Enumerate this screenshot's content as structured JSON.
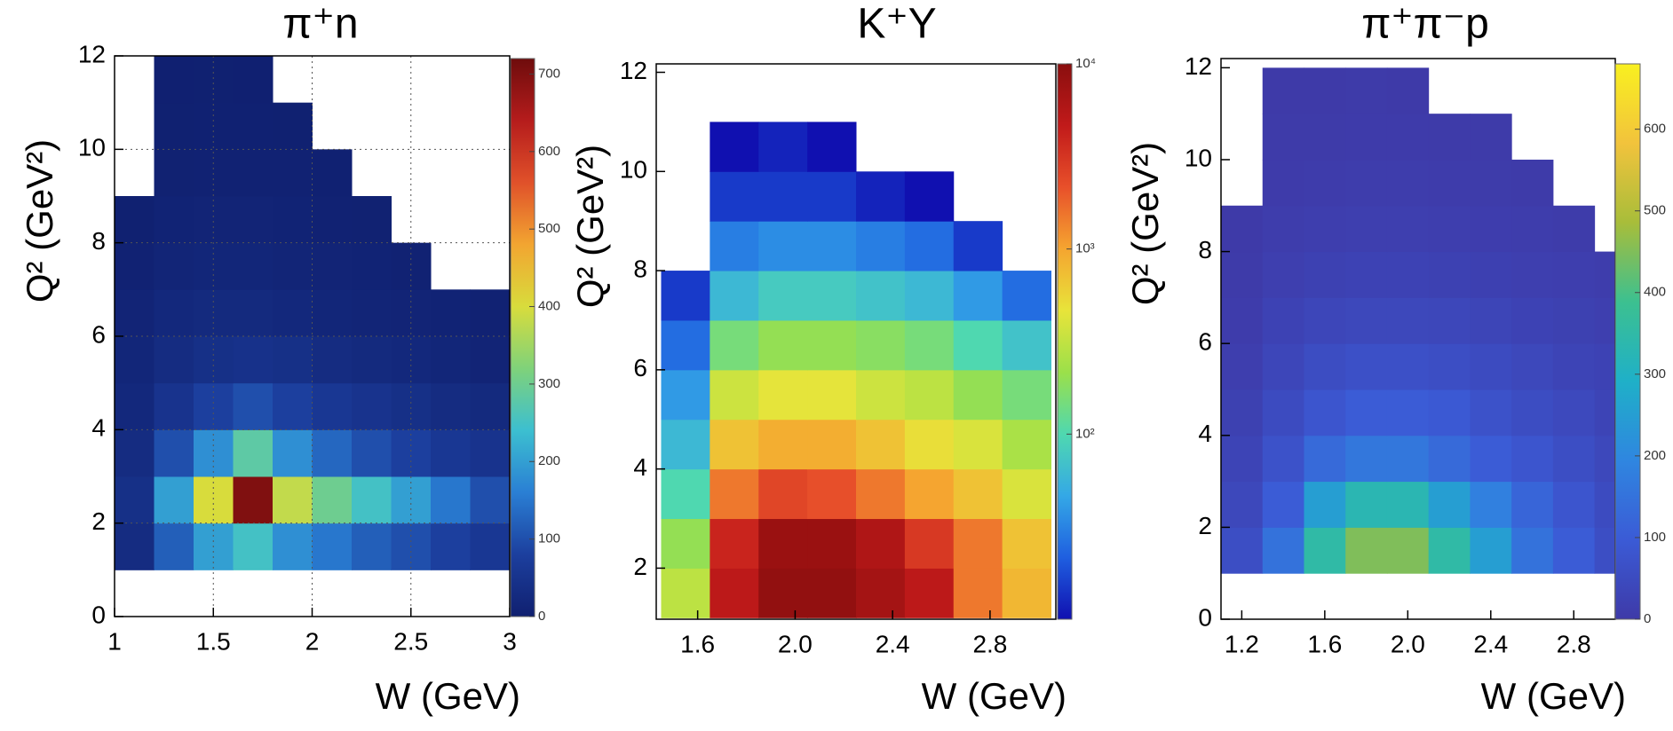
{
  "chart_data": [
    {
      "type": "heatmap",
      "title": "π⁺n",
      "xlabel": "W (GeV)",
      "ylabel": "Q² (GeV²)",
      "xlim": [
        1,
        3
      ],
      "ylim": [
        0,
        12
      ],
      "xticks": [
        1,
        1.5,
        2,
        2.5,
        3
      ],
      "yticks": [
        0,
        2,
        4,
        6,
        8,
        10,
        12
      ],
      "grid": true,
      "xbins": [
        1,
        1.2,
        1.4,
        1.6,
        1.8,
        2,
        2.2,
        2.4,
        2.6,
        2.8,
        3
      ],
      "ybins": [
        0,
        1,
        2,
        3,
        4,
        5,
        6,
        7,
        8,
        9,
        10,
        11,
        12
      ],
      "values": [
        [
          null,
          null,
          null,
          null,
          null,
          null,
          null,
          null,
          null,
          null
        ],
        [
          30,
          120,
          200,
          250,
          180,
          150,
          120,
          100,
          80,
          60
        ],
        [
          40,
          200,
          400,
          700,
          380,
          300,
          250,
          200,
          150,
          100
        ],
        [
          30,
          100,
          180,
          280,
          180,
          130,
          100,
          80,
          60,
          50
        ],
        [
          20,
          50,
          80,
          100,
          80,
          60,
          50,
          40,
          30,
          25
        ],
        [
          15,
          30,
          40,
          45,
          40,
          30,
          25,
          20,
          15,
          10
        ],
        [
          10,
          20,
          25,
          25,
          20,
          15,
          12,
          10,
          8,
          5
        ],
        [
          5,
          12,
          15,
          15,
          12,
          10,
          8,
          6,
          null,
          null
        ],
        [
          2,
          8,
          10,
          10,
          8,
          6,
          4,
          null,
          null,
          null
        ],
        [
          null,
          4,
          6,
          6,
          5,
          3,
          null,
          null,
          null,
          null
        ],
        [
          null,
          2,
          3,
          3,
          2,
          null,
          null,
          null,
          null,
          null
        ],
        [
          null,
          1,
          2,
          1,
          null,
          null,
          null,
          null,
          null,
          null
        ]
      ],
      "clim": [
        0,
        720
      ],
      "clog": false,
      "cticks": [
        0,
        100,
        200,
        300,
        400,
        500,
        600,
        700
      ],
      "colormap": [
        "#102070",
        "#1c3f9e",
        "#2a7fd4",
        "#3cbfd0",
        "#7fd27a",
        "#d8dc3c",
        "#f2a531",
        "#e0512a",
        "#b51c1c",
        "#6e0c0c"
      ]
    },
    {
      "type": "heatmap",
      "title": "K⁺Y",
      "xlabel": "W (GeV)",
      "ylabel": "Q² (GeV²)",
      "xlim": [
        1.43,
        3.07
      ],
      "ylim": [
        0.97,
        12.17
      ],
      "xticks": [
        1.6,
        {
          "value": 2,
          "label": "2.0"
        },
        2.4,
        2.8
      ],
      "yticks": [
        2,
        4,
        6,
        8,
        10,
        12
      ],
      "grid": false,
      "xbins": [
        1.45,
        1.65,
        1.85,
        2.05,
        2.25,
        2.45,
        2.65,
        2.85,
        3.05
      ],
      "ybins": [
        1,
        2,
        3,
        4,
        5,
        6,
        7,
        8,
        9,
        10,
        11
      ],
      "values": [
        [
          300,
          5000,
          9000,
          9000,
          7000,
          5000,
          1500,
          800
        ],
        [
          200,
          4000,
          8000,
          8000,
          6000,
          3000,
          1500,
          700
        ],
        [
          100,
          1500,
          2500,
          2200,
          1500,
          1000,
          700,
          400
        ],
        [
          60,
          700,
          900,
          900,
          700,
          500,
          400,
          250
        ],
        [
          40,
          350,
          450,
          450,
          350,
          300,
          200,
          150
        ],
        [
          25,
          150,
          200,
          200,
          180,
          150,
          100,
          70
        ],
        [
          15,
          60,
          80,
          80,
          70,
          60,
          40,
          25
        ],
        [
          null,
          30,
          35,
          35,
          30,
          25,
          15,
          null
        ],
        [
          null,
          15,
          15,
          15,
          12,
          10,
          null,
          null
        ],
        [
          null,
          10,
          12,
          10,
          null,
          null,
          null,
          null
        ]
      ],
      "clim": [
        10,
        10000
      ],
      "clog": true,
      "cticks": [
        {
          "value": 100,
          "label": "10²"
        },
        {
          "value": 1000,
          "label": "10³"
        },
        {
          "value": 10000,
          "label": "10⁴"
        }
      ],
      "colormap": [
        "#1010b0",
        "#1f5fe0",
        "#34a8e6",
        "#4fd8b0",
        "#9be04a",
        "#e8e43a",
        "#f5a530",
        "#e8502a",
        "#c11a1a",
        "#8a0e0e"
      ]
    },
    {
      "type": "heatmap",
      "title": "π⁺π⁻p",
      "xlabel": "W (GeV)",
      "ylabel": "Q² (GeV²)",
      "xlim": [
        1.1,
        3
      ],
      "ylim": [
        0,
        12.2
      ],
      "xticks": [
        1.2,
        1.6,
        {
          "value": 2,
          "label": "2.0"
        },
        2.4,
        2.8
      ],
      "yticks": [
        0,
        2,
        4,
        6,
        8,
        10,
        12
      ],
      "grid": false,
      "xbins": [
        1.1,
        1.3,
        1.5,
        1.7,
        1.9,
        2.1,
        2.3,
        2.5,
        2.7,
        2.9,
        3
      ],
      "ybins": [
        1,
        2,
        3,
        4,
        5,
        6,
        7,
        8,
        9,
        10,
        11,
        12
      ],
      "values": [
        [
          60,
          150,
          350,
          450,
          450,
          350,
          250,
          150,
          100,
          60
        ],
        [
          40,
          100,
          250,
          330,
          330,
          250,
          180,
          120,
          80,
          50
        ],
        [
          30,
          70,
          130,
          160,
          160,
          130,
          100,
          80,
          60,
          40
        ],
        [
          20,
          50,
          80,
          100,
          100,
          90,
          70,
          55,
          45,
          30
        ],
        [
          12,
          35,
          55,
          65,
          65,
          60,
          50,
          40,
          30,
          25
        ],
        [
          6,
          25,
          35,
          40,
          40,
          38,
          32,
          25,
          20,
          15
        ],
        [
          3,
          15,
          22,
          25,
          25,
          22,
          18,
          15,
          12,
          8
        ],
        [
          1,
          8,
          12,
          14,
          14,
          12,
          10,
          8,
          5,
          null
        ],
        [
          null,
          4,
          6,
          8,
          8,
          7,
          5,
          3,
          null,
          null
        ],
        [
          null,
          2,
          3,
          4,
          4,
          3,
          2,
          null,
          null,
          null
        ],
        [
          null,
          1,
          1,
          2,
          1,
          null,
          null,
          null,
          null,
          null
        ]
      ],
      "clim": [
        0,
        680
      ],
      "clog": false,
      "cticks": [
        0,
        100,
        200,
        300,
        400,
        500,
        600
      ],
      "colormap": [
        "#3e3aa8",
        "#3b5bd6",
        "#2f86e0",
        "#1fb0c8",
        "#3cc090",
        "#a8bd3a",
        "#f2c33c",
        "#f9f020"
      ]
    }
  ]
}
